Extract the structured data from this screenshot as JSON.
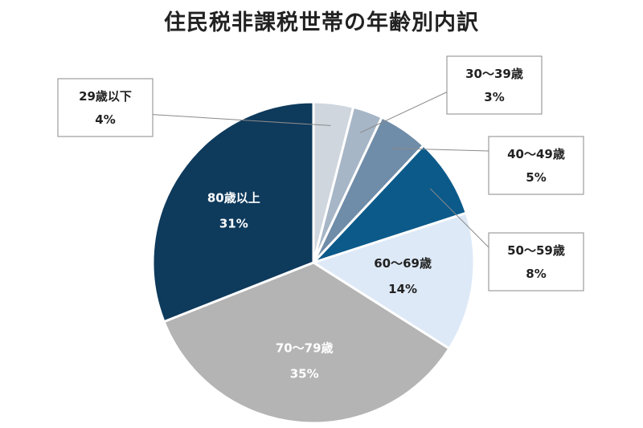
{
  "chart_data": {
    "type": "pie",
    "title": "住民税非課税世帯の年齢別内訳",
    "slices": [
      {
        "label": "29歳以下",
        "value": 4,
        "value_label": "4%",
        "color": "#cfd6de"
      },
      {
        "label": "30〜39歳",
        "value": 3,
        "value_label": "3%",
        "color": "#a6b6c7"
      },
      {
        "label": "40〜49歳",
        "value": 5,
        "value_label": "5%",
        "color": "#6f8ca8"
      },
      {
        "label": "50〜59歳",
        "value": 8,
        "value_label": "8%",
        "color": "#0c5a8a"
      },
      {
        "label": "60〜69歳",
        "value": 14,
        "value_label": "14%",
        "color": "#dde9f7"
      },
      {
        "label": "70〜79歳",
        "value": 35,
        "value_label": "35%",
        "color": "#b4b4b4"
      },
      {
        "label": "80歳以上",
        "value": 31,
        "value_label": "31%",
        "color": "#0e3a5c"
      }
    ],
    "start_angle_deg": 0,
    "direction": "clockwise"
  }
}
